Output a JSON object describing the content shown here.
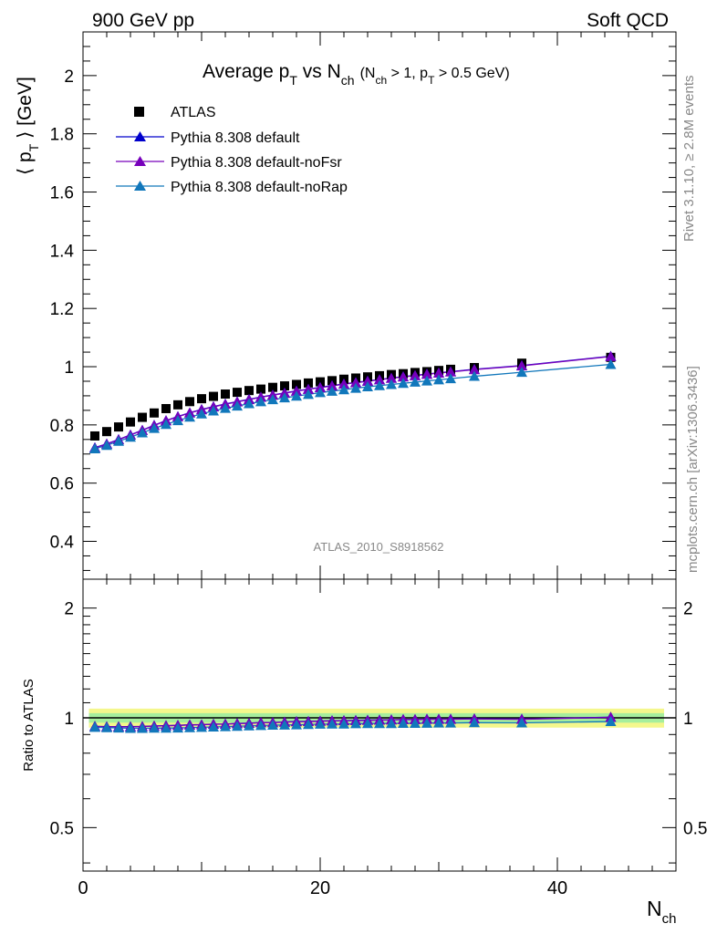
{
  "header": {
    "left": "900 GeV pp",
    "right": "Soft QCD",
    "side_top": "Rivet 3.1.10, ≥ 2.8M events",
    "side_bottom": "mcplots.cern.ch [arXiv:1306.3436]"
  },
  "chart_data": [
    {
      "type": "scatter",
      "title_main": "Average p",
      "title_sub_t": "T",
      "title_vs": " vs N",
      "title_sub_ch": "ch",
      "title_cut": "(N",
      "title_cut_sub1": "ch",
      "title_cut_mid": " > 1, p",
      "title_cut_sub2": "T",
      "title_cut_end": " > 0.5 GeV)",
      "ylabel": "⟨ p_T ⟩  [GeV]",
      "ylabel_lbrack": "⟨ p",
      "ylabel_sub": "T",
      "ylabel_rest": " ⟩  [GeV]",
      "watermark": "ATLAS_2010_S8918562",
      "xlim": [
        0,
        50
      ],
      "ylim": [
        0.27,
        2.15
      ],
      "yticks": [
        "0.4",
        "0.6",
        "0.8",
        "1",
        "1.2",
        "1.4",
        "1.6",
        "1.8",
        "2"
      ],
      "legend": [
        "ATLAS",
        "Pythia 8.308 default",
        "Pythia 8.308 default-noFsr",
        "Pythia 8.308 default-noRap"
      ],
      "colors": {
        "atlas": "#000000",
        "default": "#0000cc",
        "noFsr": "#7700bb",
        "noRap": "#1177bb"
      },
      "x": [
        1,
        2,
        3,
        4,
        5,
        6,
        7,
        8,
        9,
        10,
        11,
        12,
        13,
        14,
        15,
        16,
        17,
        18,
        19,
        20,
        21,
        22,
        23,
        24,
        25,
        26,
        27,
        28,
        29,
        30,
        31,
        33,
        37,
        44.5
      ],
      "series": [
        {
          "name": "ATLAS",
          "values": [
            0.762,
            0.777,
            0.793,
            0.81,
            0.826,
            0.841,
            0.856,
            0.869,
            0.88,
            0.89,
            0.898,
            0.906,
            0.912,
            0.918,
            0.923,
            0.929,
            0.934,
            0.939,
            0.944,
            0.948,
            0.952,
            0.957,
            0.961,
            0.965,
            0.969,
            0.973,
            0.976,
            0.98,
            0.983,
            0.987,
            0.991,
            0.997,
            1.012,
            1.032
          ]
        },
        {
          "name": "Pythia 8.308 default",
          "values": [
            0.722,
            0.735,
            0.75,
            0.766,
            0.782,
            0.799,
            0.815,
            0.829,
            0.842,
            0.853,
            0.863,
            0.872,
            0.88,
            0.888,
            0.896,
            0.903,
            0.91,
            0.917,
            0.923,
            0.929,
            0.935,
            0.941,
            0.946,
            0.951,
            0.956,
            0.961,
            0.966,
            0.97,
            0.975,
            0.979,
            0.983,
            0.991,
            1.004,
            1.036
          ]
        },
        {
          "name": "Pythia 8.308 default-noFsr",
          "values": [
            0.721,
            0.734,
            0.749,
            0.765,
            0.781,
            0.798,
            0.814,
            0.828,
            0.841,
            0.852,
            0.862,
            0.871,
            0.879,
            0.887,
            0.895,
            0.902,
            0.909,
            0.916,
            0.922,
            0.928,
            0.934,
            0.94,
            0.945,
            0.95,
            0.955,
            0.96,
            0.965,
            0.969,
            0.974,
            0.978,
            0.982,
            0.99,
            1.003,
            1.035
          ]
        },
        {
          "name": "Pythia 8.308 default-noRap",
          "values": [
            0.718,
            0.73,
            0.744,
            0.758,
            0.773,
            0.788,
            0.802,
            0.815,
            0.827,
            0.838,
            0.848,
            0.857,
            0.865,
            0.873,
            0.88,
            0.887,
            0.893,
            0.899,
            0.905,
            0.911,
            0.916,
            0.921,
            0.926,
            0.931,
            0.935,
            0.939,
            0.943,
            0.947,
            0.951,
            0.955,
            0.959,
            0.967,
            0.981,
            1.008
          ]
        }
      ]
    },
    {
      "type": "scatter",
      "ylabel": "Ratio to ATLAS",
      "xlabel": "N_ch",
      "xlabel_main": "N",
      "xlabel_sub": "ch",
      "xlim": [
        0,
        50
      ],
      "ylim": [
        0.38,
        2.4
      ],
      "log_y": true,
      "yticks": [
        "0.5",
        "1",
        "2"
      ],
      "yticks_right": [
        "0.5",
        "1",
        "2"
      ],
      "xticks": [
        "0",
        "20",
        "40"
      ],
      "band": {
        "inner": 0.03,
        "outer": 0.06
      },
      "x": [
        1,
        2,
        3,
        4,
        5,
        6,
        7,
        8,
        9,
        10,
        11,
        12,
        13,
        14,
        15,
        16,
        17,
        18,
        19,
        20,
        21,
        22,
        23,
        24,
        25,
        26,
        27,
        28,
        29,
        30,
        31,
        33,
        37,
        44.5
      ],
      "series": [
        {
          "name": "Pythia 8.308 default",
          "values": [
            0.948,
            0.946,
            0.946,
            0.946,
            0.947,
            0.95,
            0.952,
            0.954,
            0.957,
            0.958,
            0.961,
            0.962,
            0.965,
            0.967,
            0.971,
            0.971,
            0.974,
            0.977,
            0.978,
            0.98,
            0.982,
            0.983,
            0.984,
            0.986,
            0.987,
            0.988,
            0.99,
            0.99,
            0.992,
            0.992,
            0.992,
            0.994,
            0.992,
            1.004
          ]
        },
        {
          "name": "Pythia 8.308 default-noFsr",
          "values": [
            0.946,
            0.945,
            0.945,
            0.944,
            0.946,
            0.949,
            0.951,
            0.953,
            0.956,
            0.957,
            0.96,
            0.961,
            0.964,
            0.966,
            0.97,
            0.97,
            0.973,
            0.976,
            0.977,
            0.979,
            0.981,
            0.982,
            0.983,
            0.984,
            0.986,
            0.987,
            0.989,
            0.989,
            0.991,
            0.991,
            0.991,
            0.993,
            0.991,
            1.003
          ]
        },
        {
          "name": "Pythia 8.308 default-noRap",
          "values": [
            0.942,
            0.94,
            0.938,
            0.936,
            0.936,
            0.937,
            0.937,
            0.938,
            0.94,
            0.942,
            0.944,
            0.946,
            0.948,
            0.951,
            0.953,
            0.955,
            0.956,
            0.957,
            0.959,
            0.961,
            0.962,
            0.962,
            0.964,
            0.965,
            0.965,
            0.965,
            0.966,
            0.966,
            0.967,
            0.968,
            0.968,
            0.97,
            0.969,
            0.977
          ]
        }
      ]
    }
  ]
}
